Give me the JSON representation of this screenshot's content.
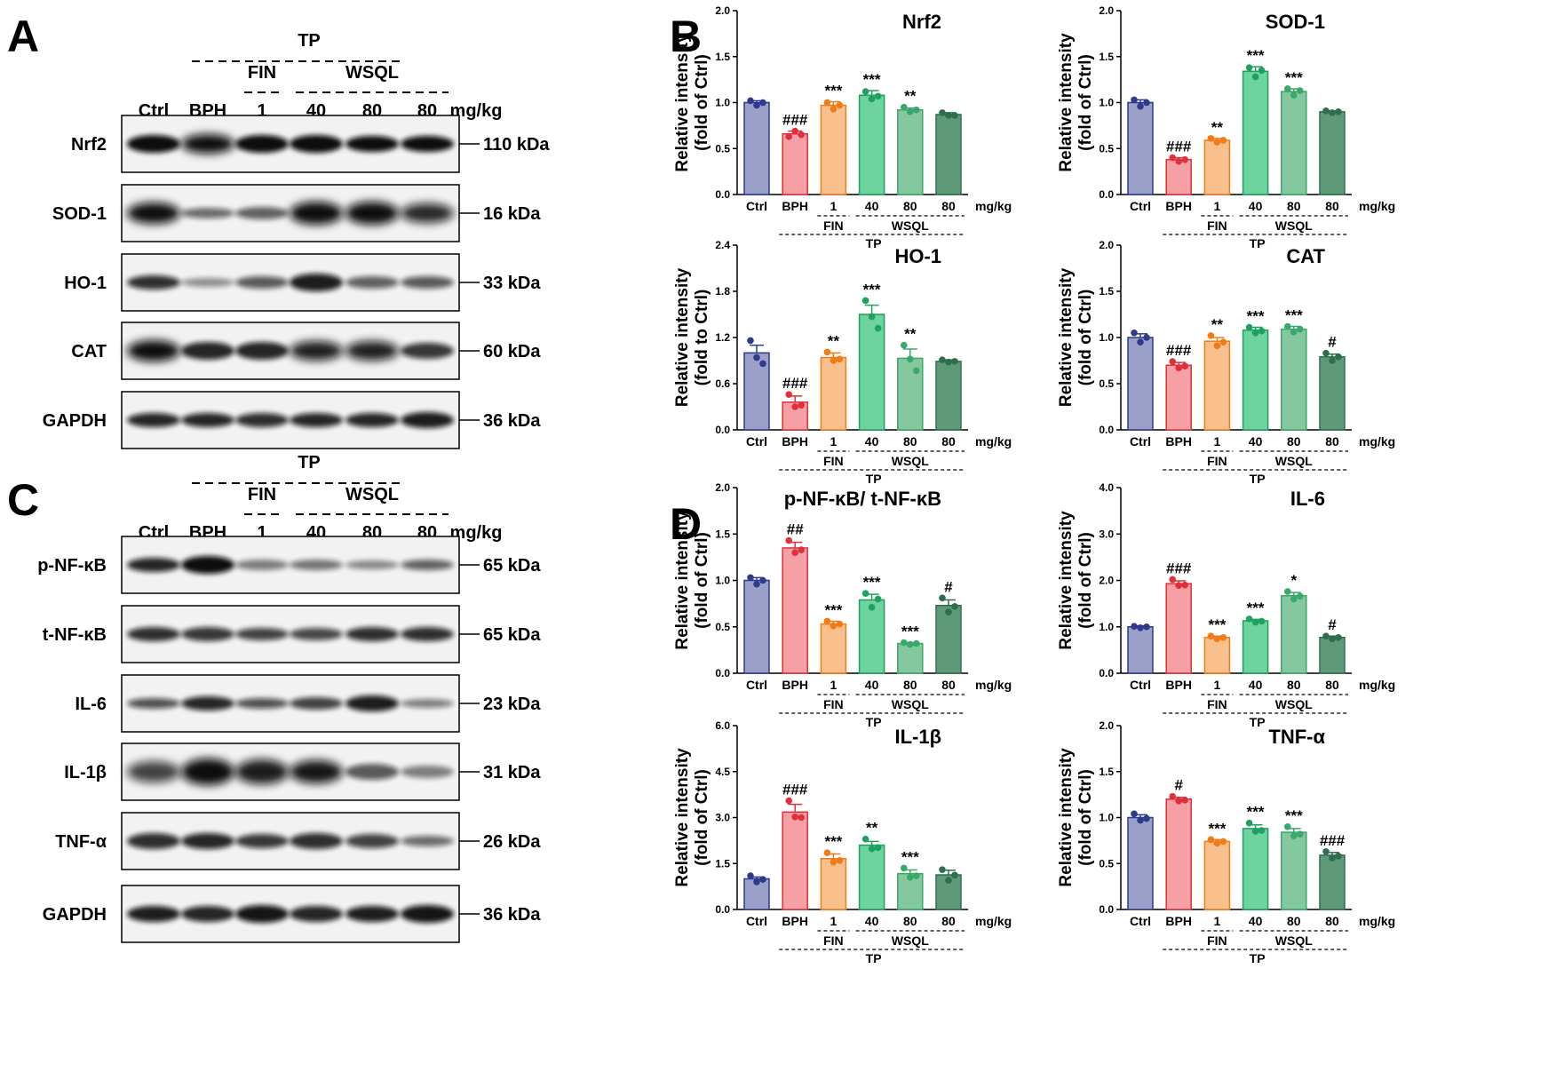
{
  "panels": {
    "A": "A",
    "B": "B",
    "C": "C",
    "D": "D"
  },
  "blot_header": {
    "tp": "TP",
    "fin": "FIN",
    "wsql": "WSQL",
    "lanes": [
      "Ctrl",
      "BPH",
      "1",
      "40",
      "80",
      "80"
    ],
    "unit": "mg/kg"
  },
  "blots_A": [
    {
      "label": "Nrf2",
      "kda": "110 kDa"
    },
    {
      "label": "SOD-1",
      "kda": "16 kDa"
    },
    {
      "label": "HO-1",
      "kda": "33 kDa"
    },
    {
      "label": "CAT",
      "kda": "60 kDa"
    },
    {
      "label": "GAPDH",
      "kda": "36 kDa"
    }
  ],
  "blots_C": [
    {
      "label": "p-NF-κB",
      "kda": "65 kDa"
    },
    {
      "label": "t-NF-κB",
      "kda": "65 kDa"
    },
    {
      "label": "IL-6",
      "kda": "23 kDa"
    },
    {
      "label": "IL-1β",
      "kda": "31 kDa"
    },
    {
      "label": "TNF-α",
      "kda": "26 kDa"
    },
    {
      "label": "GAPDH",
      "kda": "36 kDa"
    }
  ],
  "group_labels": {
    "fin": "FIN",
    "wsql": "WSQL",
    "tp": "TP",
    "unit": "mg/kg"
  },
  "colors": {
    "fill": [
      "#9aa0c8",
      "#f4a0a4",
      "#f9c08e",
      "#6fd3a0",
      "#84c8a0",
      "#5e9a78"
    ],
    "edge": [
      "#2f3a8c",
      "#e0303c",
      "#f07b18",
      "#1ea060",
      "#3aa86a",
      "#2e6e4e"
    ],
    "dot": [
      "#2f3a8c",
      "#e0303c",
      "#f07b18",
      "#1ea060",
      "#3aa86a",
      "#2e6e4e"
    ]
  },
  "chart_data": [
    {
      "type": "bar",
      "title": "Nrf2",
      "ylabel_1": "Relative intensity",
      "ylabel_2": "(fold of Ctrl)",
      "categories": [
        "Ctrl",
        "BPH",
        "1",
        "40",
        "80",
        "80"
      ],
      "ylim": [
        0,
        2.0
      ],
      "ticks": [
        "0.0",
        "0.5",
        "1.0",
        "1.5",
        "2.0"
      ],
      "values": [
        1.0,
        0.66,
        0.97,
        1.08,
        0.92,
        0.87
      ],
      "sem": [
        0.02,
        0.03,
        0.04,
        0.05,
        0.02,
        0.02
      ],
      "points": [
        [
          1.02,
          0.97,
          1.0
        ],
        [
          0.63,
          0.69,
          0.65
        ],
        [
          1.0,
          0.93,
          0.97
        ],
        [
          1.12,
          1.04,
          1.07
        ],
        [
          0.95,
          0.9,
          0.92
        ],
        [
          0.89,
          0.86,
          0.86
        ]
      ],
      "sig": [
        "",
        "###",
        "***",
        "***",
        "**",
        ""
      ]
    },
    {
      "type": "bar",
      "title": "SOD-1",
      "ylabel_1": "Relative intensity",
      "ylabel_2": "(fold of Ctrl)",
      "categories": [
        "Ctrl",
        "BPH",
        "1",
        "40",
        "80",
        "80"
      ],
      "ylim": [
        0,
        2.0
      ],
      "ticks": [
        "0.0",
        "0.5",
        "1.0",
        "1.5",
        "2.0"
      ],
      "values": [
        1.0,
        0.38,
        0.59,
        1.34,
        1.12,
        0.9
      ],
      "sem": [
        0.03,
        0.02,
        0.02,
        0.05,
        0.03,
        0.01
      ],
      "points": [
        [
          1.03,
          0.96,
          1.0
        ],
        [
          0.4,
          0.36,
          0.38
        ],
        [
          0.61,
          0.57,
          0.59
        ],
        [
          1.38,
          1.28,
          1.35
        ],
        [
          1.15,
          1.08,
          1.13
        ],
        [
          0.91,
          0.89,
          0.9
        ]
      ],
      "sig": [
        "",
        "###",
        "**",
        "***",
        "***",
        ""
      ]
    },
    {
      "type": "bar",
      "title": "HO-1",
      "ylabel_1": "Relative intensity",
      "ylabel_2": "(fold to Ctrl)",
      "categories": [
        "Ctrl",
        "BPH",
        "1",
        "40",
        "80",
        "80"
      ],
      "ylim": [
        0,
        2.4
      ],
      "ticks": [
        "0.0",
        "0.6",
        "1.2",
        "1.8",
        "2.4"
      ],
      "values": [
        1.0,
        0.36,
        0.94,
        1.5,
        0.93,
        0.89
      ],
      "sem": [
        0.1,
        0.08,
        0.06,
        0.12,
        0.12,
        0.02
      ],
      "points": [
        [
          1.16,
          0.94,
          0.86
        ],
        [
          0.46,
          0.3,
          0.32
        ],
        [
          1.01,
          0.9,
          0.92
        ],
        [
          1.68,
          1.47,
          1.32
        ],
        [
          1.1,
          0.92,
          0.77
        ],
        [
          0.91,
          0.88,
          0.89
        ]
      ],
      "sig": [
        "",
        "###",
        "**",
        "***",
        "**",
        ""
      ]
    },
    {
      "type": "bar",
      "title": "CAT",
      "ylabel_1": "Relative intensity",
      "ylabel_2": "(fold of Ctrl)",
      "categories": [
        "Ctrl",
        "BPH",
        "1",
        "40",
        "80",
        "80"
      ],
      "ylim": [
        0,
        2.0
      ],
      "ticks": [
        "0.0",
        "0.5",
        "1.0",
        "1.5",
        "2.0"
      ],
      "values": [
        1.0,
        0.7,
        0.96,
        1.08,
        1.09,
        0.79
      ],
      "sem": [
        0.04,
        0.03,
        0.04,
        0.03,
        0.03,
        0.03
      ],
      "points": [
        [
          1.05,
          0.95,
          1.0
        ],
        [
          0.74,
          0.67,
          0.69
        ],
        [
          1.02,
          0.91,
          0.95
        ],
        [
          1.11,
          1.05,
          1.07
        ],
        [
          1.12,
          1.06,
          1.09
        ],
        [
          0.83,
          0.75,
          0.79
        ]
      ],
      "sig": [
        "",
        "###",
        "**",
        "***",
        "***",
        "#"
      ]
    },
    {
      "type": "bar",
      "title": "p-NF-κB/ t-NF-κB",
      "ylabel_1": "Relative intensity",
      "ylabel_2": "(fold of Ctrl)",
      "categories": [
        "Ctrl",
        "BPH",
        "1",
        "40",
        "80",
        "80"
      ],
      "ylim": [
        0,
        2.0
      ],
      "ticks": [
        "0.0",
        "0.5",
        "1.0",
        "1.5",
        "2.0"
      ],
      "values": [
        1.0,
        1.35,
        0.53,
        0.79,
        0.32,
        0.73
      ],
      "sem": [
        0.03,
        0.06,
        0.03,
        0.06,
        0.01,
        0.06
      ],
      "points": [
        [
          1.03,
          0.96,
          1.0
        ],
        [
          1.43,
          1.3,
          1.33
        ],
        [
          0.56,
          0.51,
          0.53
        ],
        [
          0.86,
          0.71,
          0.8
        ],
        [
          0.33,
          0.31,
          0.32
        ],
        [
          0.81,
          0.66,
          0.72
        ]
      ],
      "sig": [
        "",
        "##",
        "***",
        "***",
        "***",
        "#"
      ]
    },
    {
      "type": "bar",
      "title": "IL-6",
      "ylabel_1": "Relative intensity",
      "ylabel_2": "(fold of Ctrl)",
      "categories": [
        "Ctrl",
        "BPH",
        "1",
        "40",
        "80",
        "80"
      ],
      "ylim": [
        0,
        4.0
      ],
      "ticks": [
        "0.0",
        "1.0",
        "2.0",
        "3.0",
        "4.0"
      ],
      "values": [
        1.0,
        1.93,
        0.77,
        1.13,
        1.67,
        0.77
      ],
      "sem": [
        0.02,
        0.06,
        0.03,
        0.03,
        0.07,
        0.03
      ],
      "points": [
        [
          1.01,
          0.98,
          1.0
        ],
        [
          2.02,
          1.89,
          1.9
        ],
        [
          0.8,
          0.74,
          0.77
        ],
        [
          1.17,
          1.1,
          1.12
        ],
        [
          1.76,
          1.6,
          1.66
        ],
        [
          0.8,
          0.74,
          0.77
        ]
      ],
      "sig": [
        "",
        "###",
        "***",
        "***",
        "*",
        "#"
      ]
    },
    {
      "type": "bar",
      "title": "IL-1β",
      "ylabel_1": "Relative intensity",
      "ylabel_2": "(fold of Ctrl)",
      "categories": [
        "Ctrl",
        "BPH",
        "1",
        "40",
        "80",
        "80"
      ],
      "ylim": [
        0,
        6.0
      ],
      "ticks": [
        "0.0",
        "1.5",
        "3.0",
        "4.5",
        "6.0"
      ],
      "values": [
        1.0,
        3.18,
        1.66,
        2.1,
        1.17,
        1.13
      ],
      "sem": [
        0.06,
        0.25,
        0.15,
        0.12,
        0.12,
        0.15
      ],
      "points": [
        [
          1.1,
          0.9,
          0.98
        ],
        [
          3.55,
          3.02,
          3.0
        ],
        [
          1.85,
          1.55,
          1.6
        ],
        [
          2.3,
          1.98,
          2.02
        ],
        [
          1.35,
          1.05,
          1.1
        ],
        [
          1.3,
          0.95,
          1.12
        ]
      ],
      "sig": [
        "",
        "###",
        "***",
        "**",
        "***",
        ""
      ]
    },
    {
      "type": "bar",
      "title": "TNF-α",
      "ylabel_1": "Relative intensity",
      "ylabel_2": "(fold of Ctrl)",
      "categories": [
        "Ctrl",
        "BPH",
        "1",
        "40",
        "80",
        "80"
      ],
      "ylim": [
        0,
        2.0
      ],
      "ticks": [
        "0.0",
        "0.5",
        "1.0",
        "1.5",
        "2.0"
      ],
      "values": [
        1.0,
        1.2,
        0.74,
        0.88,
        0.84,
        0.59
      ],
      "sem": [
        0.03,
        0.02,
        0.02,
        0.04,
        0.04,
        0.03
      ],
      "points": [
        [
          1.04,
          0.97,
          0.99
        ],
        [
          1.23,
          1.18,
          1.19
        ],
        [
          0.76,
          0.72,
          0.74
        ],
        [
          0.94,
          0.85,
          0.86
        ],
        [
          0.9,
          0.8,
          0.82
        ],
        [
          0.63,
          0.56,
          0.58
        ]
      ],
      "sig": [
        "",
        "#",
        "***",
        "***",
        "***",
        "###"
      ]
    }
  ]
}
